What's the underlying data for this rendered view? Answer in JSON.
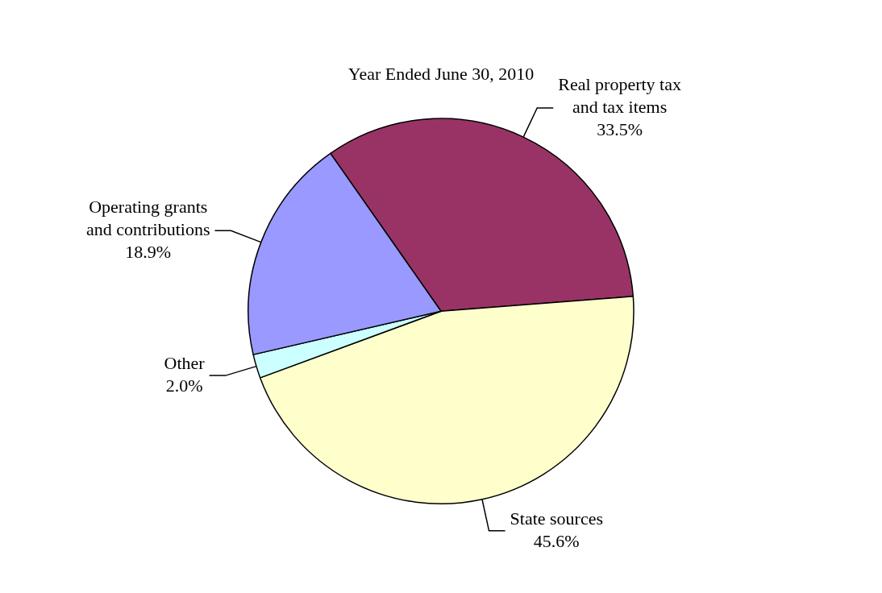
{
  "chart_data": {
    "type": "pie",
    "title": "Year Ended June 30, 2010",
    "categories": [
      "Real property tax and tax items",
      "State sources",
      "Other",
      "Operating grants and contributions"
    ],
    "values": [
      33.5,
      45.6,
      2.0,
      18.9
    ],
    "value_labels": [
      "33.5%",
      "45.6%",
      "2.0%",
      "18.9%"
    ],
    "colors": [
      "#993366",
      "#ffffcc",
      "#ccffff",
      "#9999ff"
    ],
    "legend": false
  }
}
